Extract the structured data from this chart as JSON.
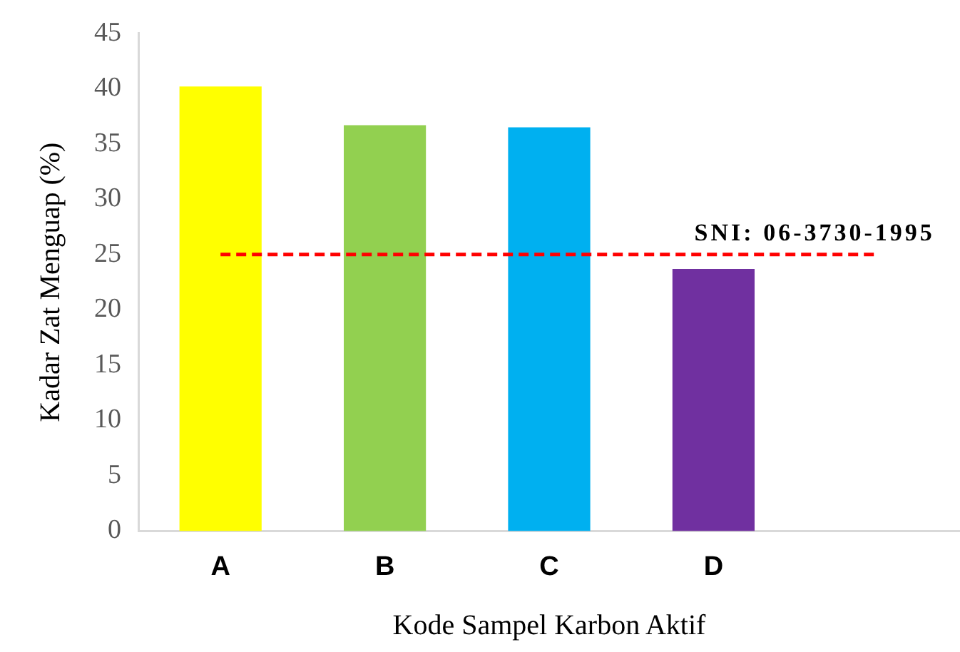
{
  "chart_data": {
    "type": "bar",
    "xlabel": "Kode Sampel Karbon Aktif",
    "ylabel": "Kadar Zat Menguap (%)",
    "categories": [
      "A",
      "B",
      "C",
      "D",
      null
    ],
    "series": [
      {
        "colors": [
          "#ffff00",
          "#92d050",
          "#00b0f0",
          "#7030a0",
          null
        ],
        "values": [
          40.2,
          36.7,
          36.5,
          23.7,
          null
        ]
      },
      {
        "type": "line",
        "name": "SNI: 06-3730-1995",
        "color": "#ff0000",
        "line_style": "dashed",
        "marker": "none",
        "values": [
          25,
          25,
          25,
          25,
          25
        ]
      }
    ],
    "ylim": [
      0,
      45
    ],
    "yticks": [
      0,
      5,
      10,
      15,
      20,
      25,
      30,
      35,
      40,
      45
    ],
    "grid": false,
    "legend": false
  }
}
